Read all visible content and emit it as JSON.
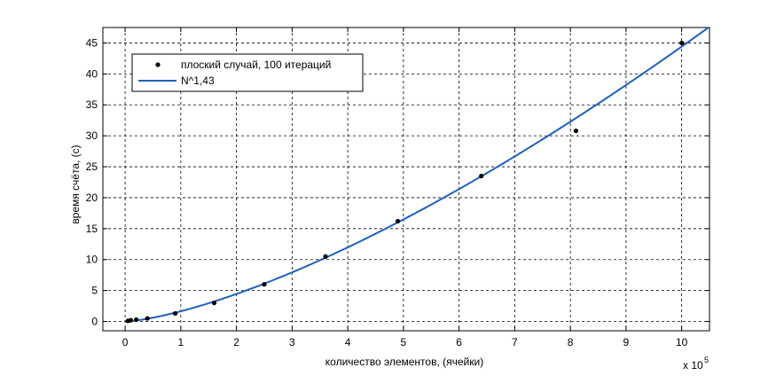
{
  "chart_data": {
    "type": "scatter",
    "title": "",
    "xlabel": "количество элементов, (ячейки)",
    "ylabel": "время счёта, (с)",
    "x_multiplier_base": "x 10",
    "x_multiplier_exp": "5",
    "xlim": [
      -0.4,
      10.5
    ],
    "ylim": [
      -1.5,
      47.5
    ],
    "x_ticks": [
      0,
      1,
      2,
      3,
      4,
      5,
      6,
      7,
      8,
      9,
      10
    ],
    "y_ticks": [
      0,
      5,
      10,
      15,
      20,
      25,
      30,
      35,
      40,
      45
    ],
    "grid": true,
    "grid_style": "dashed",
    "legend_position": "top-left",
    "series": [
      {
        "name": "плоский случай, 100 итераций",
        "kind": "points",
        "color": "#000000",
        "x": [
          0.05,
          0.1,
          0.2,
          0.4,
          0.9,
          1.6,
          2.5,
          3.6,
          4.9,
          6.4,
          8.1,
          10.0
        ],
        "y": [
          0.1,
          0.2,
          0.3,
          0.5,
          1.3,
          3.0,
          6.0,
          10.5,
          16.2,
          23.5,
          30.8,
          45.0
        ]
      },
      {
        "name": "N^1,43",
        "kind": "line",
        "color": "#1f5fbf",
        "formula": "y = 1.65 * x^1.43"
      }
    ]
  }
}
